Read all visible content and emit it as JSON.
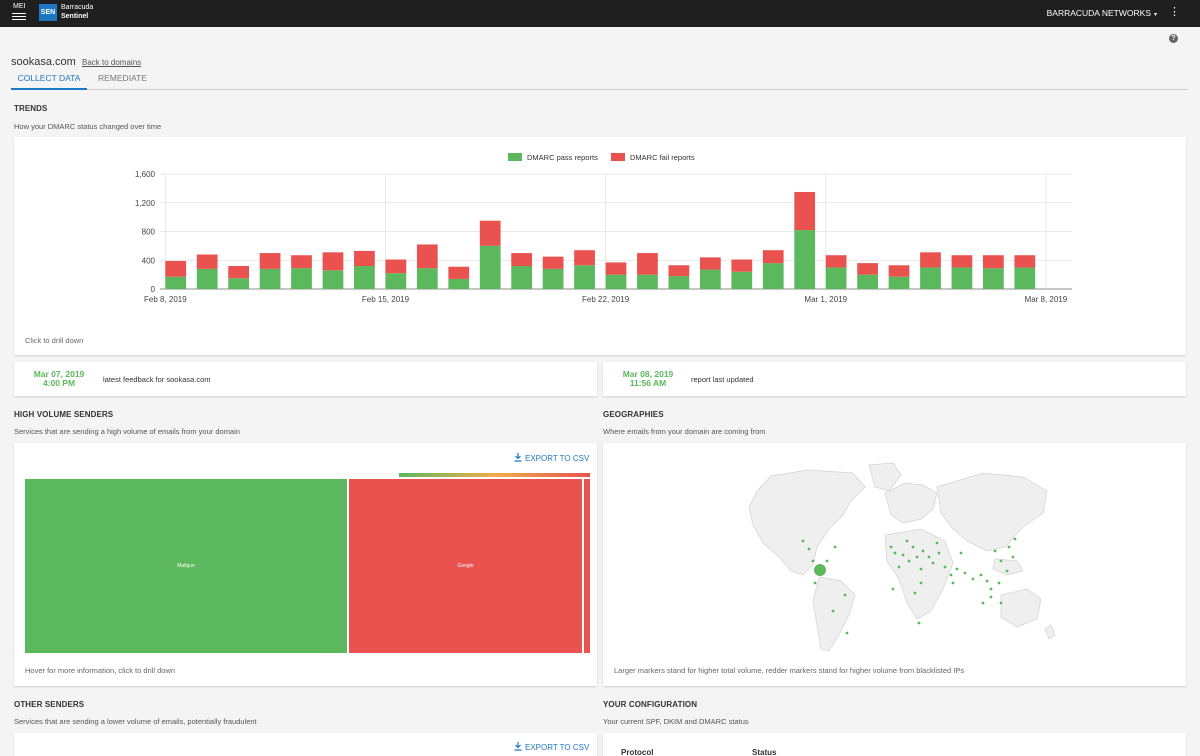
{
  "topbar": {
    "menu_label": "MEI",
    "logo_abbr": "SEN",
    "logo_line1": "Barracuda",
    "logo_line2": "Sentinel",
    "account_label": "BARRACUDA NETWORKS",
    "account_caret": "▾",
    "kebab_glyph": "⋮"
  },
  "help_glyph": "?",
  "domain": {
    "name": "sookasa.com",
    "back_label": "Back to domains"
  },
  "tabs": [
    {
      "label": "COLLECT DATA"
    },
    {
      "label": "REMEDIATE"
    }
  ],
  "trends": {
    "title": "TRENDS",
    "subtitle": "How your DMARC status changed over time",
    "footer": "Click to drill down"
  },
  "chart_data": {
    "type": "bar",
    "stacked": true,
    "title": "",
    "xlabel": "",
    "ylabel": "",
    "ylim": [
      0,
      1600
    ],
    "yticks": [
      "0",
      "400",
      "800",
      "1,200",
      "1,600"
    ],
    "xtick_labels": [
      {
        "label": "Feb 8, 2019",
        "index": 0
      },
      {
        "label": "Feb 15, 2019",
        "index": 7
      },
      {
        "label": "Feb 22, 2019",
        "index": 14
      },
      {
        "label": "Mar 1, 2019",
        "index": 21
      },
      {
        "label": "Mar 8, 2019",
        "index": 28
      }
    ],
    "grid": true,
    "legend_position": "top-center",
    "categories": [
      "Feb 8",
      "Feb 9",
      "Feb 10",
      "Feb 11",
      "Feb 12",
      "Feb 13",
      "Feb 14",
      "Feb 15",
      "Feb 16",
      "Feb 17",
      "Feb 18",
      "Feb 19",
      "Feb 20",
      "Feb 21",
      "Feb 22",
      "Feb 23",
      "Feb 24",
      "Feb 25",
      "Feb 26",
      "Feb 27",
      "Feb 28",
      "Mar 1",
      "Mar 2",
      "Mar 3",
      "Mar 4",
      "Mar 5",
      "Mar 6",
      "Mar 7",
      "Mar 8"
    ],
    "series": [
      {
        "name": "DMARC pass reports",
        "color": "#5cb85c",
        "values": [
          170,
          280,
          150,
          280,
          290,
          260,
          320,
          220,
          290,
          140,
          600,
          320,
          280,
          330,
          200,
          200,
          180,
          270,
          240,
          360,
          820,
          300,
          200,
          170,
          300,
          300,
          290,
          300,
          0
        ]
      },
      {
        "name": "DMARC fail reports",
        "color": "#e9524f",
        "values": [
          220,
          200,
          170,
          220,
          180,
          250,
          210,
          190,
          330,
          170,
          350,
          180,
          170,
          210,
          170,
          300,
          150,
          170,
          170,
          180,
          530,
          170,
          160,
          160,
          210,
          170,
          180,
          170,
          0
        ]
      }
    ]
  },
  "feedback": {
    "latest_date": "Mar 07, 2019",
    "latest_time": "4:00 PM",
    "latest_label": "latest feedback for sookasa.com",
    "updated_date": "Mar 08, 2019",
    "updated_time": "11:56 AM",
    "updated_label": "report last updated"
  },
  "high_volume": {
    "title": "HIGH VOLUME SENDERS",
    "subtitle": "Services that are sending a high volume of emails from your domain",
    "export_label": "EXPORT TO CSV",
    "footer": "Hover for more information, click to drill down",
    "cells": [
      {
        "label": "Mailgun",
        "color": "#5cb85c"
      },
      {
        "label": "Google",
        "color": "#e9524f"
      },
      {
        "label": "",
        "color": "#e9524f"
      }
    ]
  },
  "geographies": {
    "title": "GEOGRAPHIES",
    "subtitle": "Where emails from your domain are coming from",
    "footer": "Larger markers stand for higher total volume, redder markers stand for higher volume from blacklisted IPs"
  },
  "other_senders": {
    "title": "OTHER SENDERS",
    "subtitle": "Services that are sending a lower volume of emails, potentially fraudulent",
    "export_label": "EXPORT TO CSV"
  },
  "configuration": {
    "title": "YOUR CONFIGURATION",
    "subtitle": "Your current SPF, DKIM and DMARC status",
    "col_protocol": "Protocol",
    "col_status": "Status"
  },
  "colors": {
    "accent": "#1d77c2",
    "pass": "#5cb85c",
    "fail": "#e9524f",
    "topbar": "#1f1f1f"
  },
  "icons": {
    "menu": "hamburger-icon",
    "help": "help-icon",
    "download": "download-icon",
    "kebab": "kebab-icon"
  }
}
